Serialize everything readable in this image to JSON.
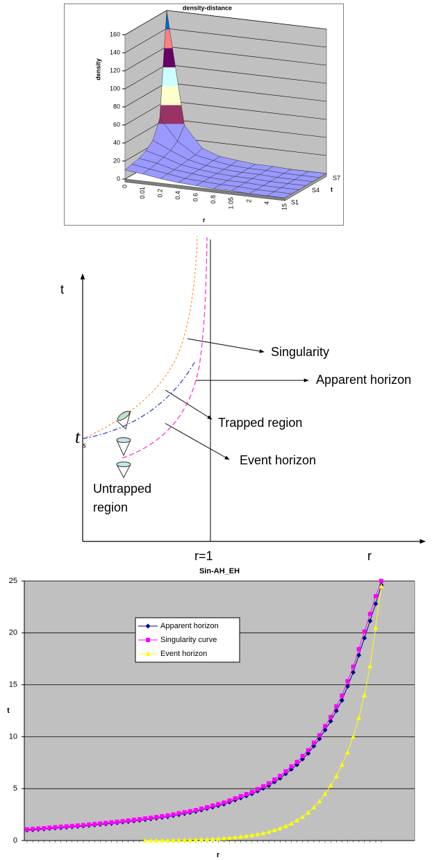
{
  "chart_data": [
    {
      "type": "surface",
      "title": "density-distance",
      "y_label": "density",
      "x_label": "r",
      "z_label": "t",
      "categories": [
        "0",
        "0.01",
        "0.2",
        "0.4",
        "0.6",
        "0.8",
        "1.05",
        "2",
        "4",
        "15"
      ],
      "z_categories": [
        "S1",
        null,
        null,
        "S4",
        null,
        null,
        "S7"
      ],
      "values": [
        [
          10,
          8,
          5,
          3,
          2,
          1,
          1,
          0,
          0,
          0
        ],
        [
          12,
          9,
          6,
          3,
          2,
          1,
          1,
          0,
          0,
          0
        ],
        [
          14,
          11,
          6,
          4,
          2,
          1,
          1,
          0,
          0,
          0
        ],
        [
          18,
          13,
          7,
          4,
          2,
          1,
          1,
          0,
          0,
          0
        ],
        [
          25,
          16,
          8,
          4,
          2,
          1,
          1,
          0,
          0,
          0
        ],
        [
          45,
          22,
          9,
          5,
          2,
          1,
          1,
          0,
          0,
          0
        ],
        [
          160,
          35,
          12,
          5,
          3,
          1,
          1,
          0,
          0,
          0
        ]
      ],
      "ylim": [
        0,
        160
      ],
      "yticks": [
        0,
        20,
        40,
        60,
        80,
        100,
        120,
        140,
        160
      ],
      "grid": true,
      "band_colors": [
        "#9999ff",
        "#9999ff",
        "#993366",
        "#ffffcc",
        "#ccffff",
        "#660066",
        "#ff8080",
        "#0066cc"
      ]
    },
    {
      "type": "line",
      "title": "Sin-AH_EH",
      "x_label": "r",
      "y_label": "t",
      "categories": [
        null,
        null,
        null,
        null,
        null,
        null,
        null,
        null,
        null,
        null,
        null,
        null,
        null,
        null,
        null,
        null,
        null,
        null,
        null,
        null,
        null,
        null,
        null,
        null,
        null,
        null,
        null,
        null,
        null,
        null,
        null,
        null,
        null,
        null,
        null,
        null,
        null,
        null,
        null,
        null,
        null,
        null,
        null,
        null,
        null,
        null,
        null,
        null,
        null,
        null,
        null,
        null,
        null,
        null,
        null,
        null,
        null,
        null,
        null,
        null,
        null,
        null,
        null,
        null
      ],
      "ylim": [
        0,
        25
      ],
      "yticks": [
        0,
        5,
        10,
        15,
        20,
        25
      ],
      "grid": true,
      "legend": "center-left",
      "series": [
        {
          "name": "Apparent horizon",
          "color": "#000080",
          "marker": "diamond",
          "values": [
            1.0,
            1.04,
            1.08,
            1.12,
            1.16,
            1.2,
            1.24,
            1.28,
            1.32,
            1.36,
            1.4,
            1.45,
            1.5,
            1.55,
            1.6,
            1.65,
            1.71,
            1.77,
            1.83,
            1.89,
            1.95,
            2.02,
            2.09,
            2.16,
            2.23,
            2.3,
            2.4,
            2.5,
            2.6,
            2.7,
            2.8,
            2.94,
            3.08,
            3.22,
            3.36,
            3.5,
            3.7,
            3.9,
            4.1,
            4.3,
            4.5,
            4.77,
            5.03,
            5.3,
            5.65,
            6.0,
            6.43,
            6.87,
            7.3,
            7.85,
            8.4,
            9.1,
            9.8,
            10.65,
            11.5,
            12.5,
            13.5,
            14.85,
            16.2,
            17.85,
            19.5,
            21.15,
            22.8,
            24.6
          ]
        },
        {
          "name": "Singularity curve",
          "color": "#ff00ff",
          "marker": "square",
          "values": [
            1.08,
            1.12,
            1.16,
            1.2,
            1.24,
            1.29,
            1.33,
            1.37,
            1.41,
            1.45,
            1.49,
            1.54,
            1.6,
            1.65,
            1.7,
            1.75,
            1.81,
            1.87,
            1.93,
            2.0,
            2.06,
            2.13,
            2.2,
            2.27,
            2.35,
            2.42,
            2.52,
            2.63,
            2.73,
            2.83,
            2.93,
            3.08,
            3.22,
            3.37,
            3.51,
            3.66,
            3.86,
            4.07,
            4.27,
            4.48,
            4.69,
            4.96,
            5.23,
            5.51,
            5.87,
            6.23,
            6.67,
            7.13,
            7.57,
            8.14,
            8.7,
            9.42,
            10.14,
            11.02,
            11.9,
            12.93,
            13.96,
            15.35,
            16.74,
            18.43,
            20.13,
            21.83,
            23.53,
            25.0
          ]
        },
        {
          "name": "Event horizon",
          "color": "#ffff00",
          "marker": "triangle",
          "values": [
            null,
            null,
            null,
            null,
            null,
            null,
            null,
            null,
            null,
            null,
            null,
            null,
            null,
            null,
            null,
            null,
            null,
            null,
            null,
            null,
            null,
            0,
            0,
            0.01,
            0.01,
            0.02,
            0.03,
            0.04,
            0.05,
            0.06,
            0.08,
            0.1,
            0.12,
            0.15,
            0.18,
            0.22,
            0.26,
            0.31,
            0.37,
            0.44,
            0.52,
            0.61,
            0.72,
            0.85,
            1.0,
            1.18,
            1.4,
            1.65,
            1.95,
            2.3,
            2.7,
            3.2,
            3.8,
            4.5,
            5.3,
            6.2,
            7.3,
            8.5,
            10.0,
            11.8,
            14.0,
            16.8,
            20.5,
            24.5
          ]
        }
      ]
    }
  ],
  "diagram": {
    "axis_t": "t",
    "axis_r": "r",
    "r_one": "r=1",
    "t_s": {
      "base": "t",
      "sub": "s"
    },
    "labels": {
      "singularity": "Singularity",
      "apparent_horizon": "Apparent horizon",
      "trapped_region": "Trapped region",
      "event_horizon": "Event horizon",
      "untrapped_region": [
        "Untrapped",
        "region"
      ]
    }
  }
}
